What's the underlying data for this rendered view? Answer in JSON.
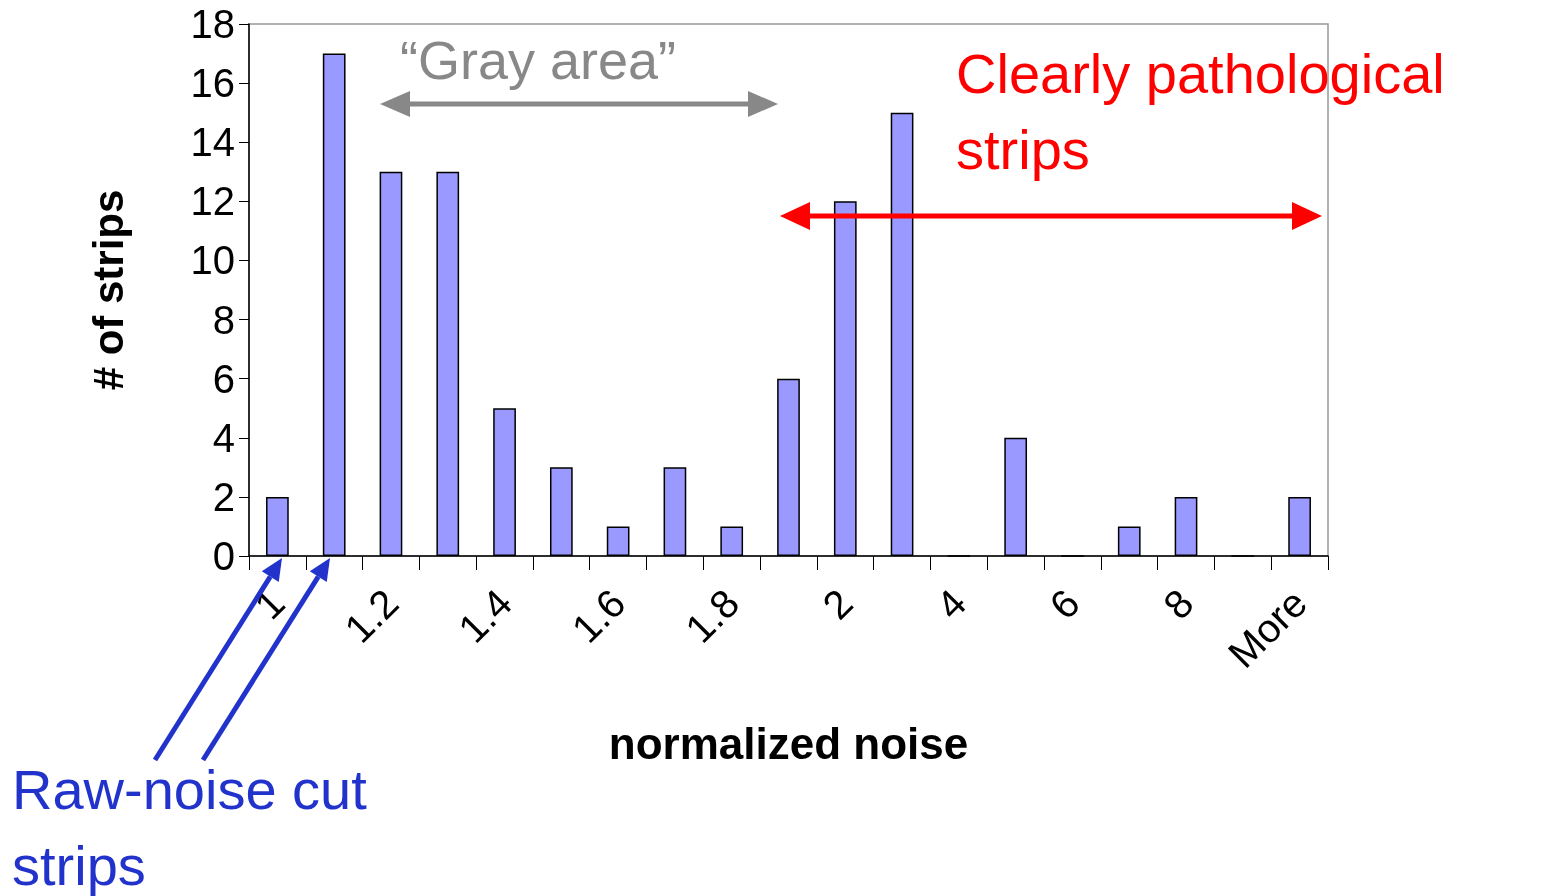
{
  "chart_data": {
    "type": "bar",
    "xlabel": "normalized noise",
    "ylabel": "# of strips",
    "categories": [
      "1",
      null,
      "1.2",
      null,
      "1.4",
      null,
      "1.6",
      null,
      "1.8",
      null,
      "2",
      null,
      "4",
      null,
      "6",
      null,
      "8",
      null,
      "More"
    ],
    "values": [
      2,
      17,
      13,
      13,
      5,
      3,
      1,
      3,
      1,
      6,
      12,
      15,
      0,
      4,
      0,
      1,
      2,
      0,
      2
    ],
    "color": "#9999ff",
    "ylim": [
      0,
      18
    ],
    "yticks": [
      0,
      2,
      4,
      6,
      8,
      10,
      12,
      14,
      16,
      18
    ],
    "annotations": [
      "“Gray area”",
      "Clearly pathological strips",
      "Raw-noise cut strips"
    ]
  }
}
